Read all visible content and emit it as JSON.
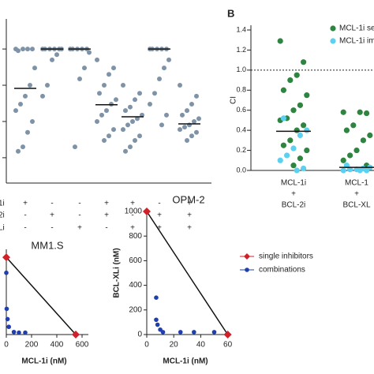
{
  "chart_data": [
    {
      "type": "dot",
      "ylog": true,
      "ylim": [
        0.0002,
        5
      ],
      "yticks": [
        0.001,
        0.01,
        0.1,
        1
      ],
      "color": "#7f93a8",
      "columns": [
        {
          "values": [
            1,
            1,
            1,
            1,
            0.9,
            0.3,
            0.1,
            0.05,
            0.03,
            0.02,
            0.01,
            0.005,
            0.002,
            0.0015
          ],
          "median": 0.082
        },
        {
          "values": [
            1,
            1,
            1,
            1,
            1,
            1,
            0.7,
            0.5,
            0.1,
            0.05
          ],
          "median": 1
        },
        {
          "values": [
            1,
            1,
            1,
            1,
            1,
            0.8,
            0.3,
            0.15,
            0.002
          ],
          "median": 1
        },
        {
          "values": [
            0.5,
            0.3,
            0.2,
            0.1,
            0.06,
            0.04,
            0.03,
            0.02,
            0.015,
            0.01,
            0.006,
            0.004,
            0.003
          ],
          "median": 0.029
        },
        {
          "values": [
            0.1,
            0.06,
            0.04,
            0.025,
            0.02,
            0.015,
            0.012,
            0.01,
            0.008,
            0.006,
            0.004,
            0.003,
            0.002,
            0.0015
          ],
          "median": 0.0135
        },
        {
          "values": [
            1,
            1,
            1,
            1,
            1,
            0.5,
            0.3,
            0.15,
            0.06,
            0.03,
            0.015,
            0.008
          ],
          "median": 1
        },
        {
          "values": [
            0.1,
            0.05,
            0.03,
            0.02,
            0.015,
            0.012,
            0.01,
            0.008,
            0.007,
            0.006,
            0.005,
            0.004,
            0.003
          ],
          "median": 0.0086
        }
      ],
      "matrix": [
        {
          "label": "1i",
          "signs": [
            "+",
            "-",
            "-",
            "+",
            "+",
            "-",
            "+"
          ]
        },
        {
          "label": "2i",
          "signs": [
            "-",
            "+",
            "-",
            "+",
            "-",
            "+",
            "+"
          ]
        },
        {
          "label": "Li",
          "signs": [
            "-",
            "-",
            "+",
            "-",
            "+",
            "+",
            "+"
          ]
        }
      ]
    },
    {
      "type": "dot",
      "panel_label": "B",
      "ylabel": "CI",
      "ylim": [
        0,
        1.4
      ],
      "yticks": [
        {
          "value": 0,
          "label": "0.0"
        },
        0.2,
        0.4,
        0.6,
        0.8,
        {
          "value": 1,
          "label": "1.0"
        },
        1.2,
        1.4
      ],
      "reference_line": 1,
      "categories": [
        [
          "MCL-1i",
          "+",
          "BCL-2i"
        ],
        [
          "MCL-1",
          "+",
          "BCL-XL"
        ]
      ],
      "series": [
        {
          "name": "MCL-1i se",
          "color": "#2e8540",
          "values": [
            [
              1.29,
              1.08,
              0.95,
              0.9,
              0.8,
              0.75,
              0.65,
              0.6,
              0.52,
              0.5,
              0.45,
              0.4,
              0.3,
              0.25,
              0.2,
              0.12,
              0.05
            ],
            [
              0.58,
              0.57,
              0.58,
              0.45,
              0.4,
              0.35,
              0.3,
              0.2,
              0.15,
              0.1,
              0.05
            ]
          ]
        },
        {
          "name": "MCL-1i im",
          "color": "#5cd0f0",
          "values": [
            [
              0.52,
              0.4,
              0.35,
              0.22,
              0.15,
              0.1,
              0.02,
              0
            ],
            [
              0.05,
              0.03,
              0.02,
              0.01,
              0.01,
              0,
              0,
              0
            ]
          ]
        }
      ],
      "medians": [
        0.39,
        0.03
      ]
    },
    {
      "type": "isobologram",
      "title": "MM1.S",
      "xlabel": "MCL-1i (nM)",
      "xlim": [
        0,
        650
      ],
      "xticks": [
        0,
        200,
        400,
        600
      ],
      "ylim": [
        0,
        650
      ],
      "series": [
        {
          "color": "#d0202a",
          "marker": "diamond",
          "x": [
            0,
            550
          ],
          "y": [
            600,
            0
          ]
        },
        {
          "color": "#1f3fb0",
          "marker": "circle",
          "x": [
            0,
            3,
            10,
            20,
            60,
            100,
            150
          ],
          "y": [
            480,
            200,
            120,
            60,
            20,
            15,
            15
          ]
        }
      ]
    },
    {
      "type": "isobologram",
      "title": "OPM-2",
      "xlabel": "MCL-1i (nM)",
      "ylabel": "BCL-XLi (nM)",
      "xlim": [
        0,
        62
      ],
      "xticks": [
        0,
        20,
        40,
        60
      ],
      "ylim": [
        0,
        1000
      ],
      "yticks": [
        0,
        200,
        400,
        600,
        800,
        1000
      ],
      "legend": true,
      "series": [
        {
          "name": "single inhibitors",
          "color": "#d0202a",
          "marker": "diamond",
          "x": [
            0,
            60
          ],
          "y": [
            1000,
            0
          ]
        },
        {
          "name": "combinations",
          "color": "#1f3fb0",
          "marker": "circle",
          "x": [
            7,
            7,
            8,
            10,
            12,
            25,
            35,
            50
          ],
          "y": [
            300,
            120,
            80,
            40,
            20,
            20,
            20,
            20
          ]
        }
      ]
    }
  ]
}
